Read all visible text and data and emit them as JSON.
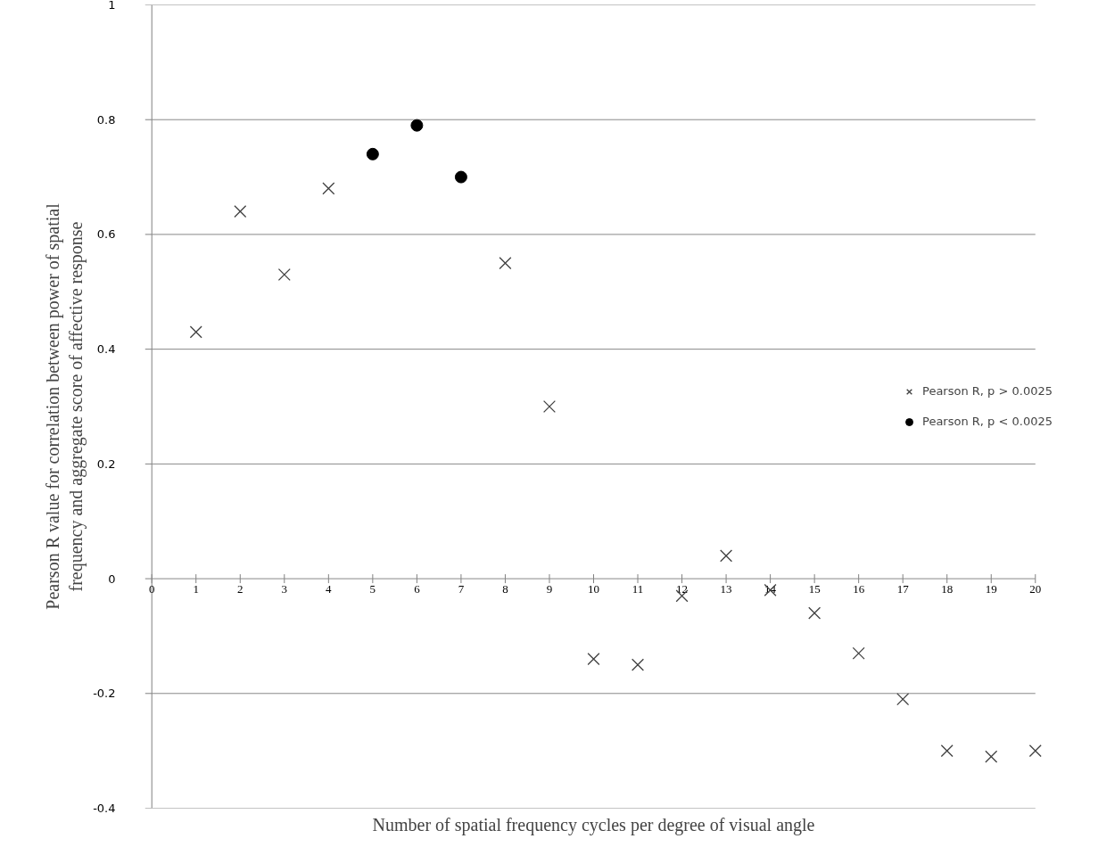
{
  "chart_data": {
    "type": "scatter",
    "xlabel": "Number of spatial frequency cycles per degree of visual angle",
    "ylabel": "Pearson R value for correlation between power of spatial\nfrequency and aggregate score of affective response",
    "xlim": [
      0,
      20
    ],
    "ylim": [
      -0.4,
      1
    ],
    "xticks": [
      0,
      1,
      2,
      3,
      4,
      5,
      6,
      7,
      8,
      9,
      10,
      11,
      12,
      13,
      14,
      15,
      16,
      17,
      18,
      19,
      20
    ],
    "yticks": [
      -0.4,
      -0.2,
      0,
      0.2,
      0.4,
      0.6,
      0.8,
      1
    ],
    "grid": "y",
    "legend": "right",
    "series": [
      {
        "name": "Pearson R, p > 0.0025",
        "color": "#404040",
        "marker": "cross",
        "x": [
          1,
          2,
          3,
          4,
          8,
          9,
          10,
          11,
          12,
          13,
          14,
          15,
          16,
          17,
          18,
          19,
          20
        ],
        "values": [
          0.43,
          0.64,
          0.53,
          0.68,
          0.55,
          0.3,
          -0.14,
          -0.15,
          -0.03,
          0.04,
          -0.02,
          -0.06,
          -0.13,
          -0.21,
          -0.3,
          -0.31,
          -0.3
        ]
      },
      {
        "name": "Pearson R, p < 0.0025",
        "color": "#000000",
        "marker": "circle",
        "x": [
          5,
          6,
          7
        ],
        "values": [
          0.74,
          0.79,
          0.7
        ]
      }
    ]
  }
}
